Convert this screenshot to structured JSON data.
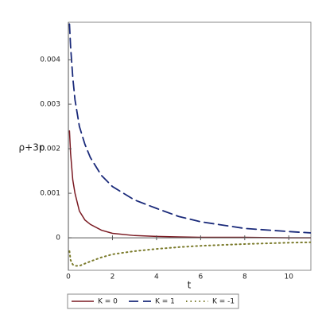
{
  "chart_data": {
    "type": "line",
    "x_label": "t",
    "y_label": "ρ+3p",
    "x": [
      0.05,
      0.1,
      0.2,
      0.3,
      0.5,
      0.75,
      1,
      1.5,
      2,
      3,
      4,
      5,
      6,
      8,
      10,
      11
    ],
    "series": [
      {
        "name": "K = 0",
        "color": "#7a1a22",
        "style": "solid",
        "values": [
          0.0024,
          0.0019,
          0.0013,
          0.001,
          0.0006,
          0.0004,
          0.0003,
          0.00017,
          0.0001,
          5e-05,
          3e-05,
          2e-05,
          1e-05,
          1e-05,
          0,
          0
        ]
      },
      {
        "name": "K = 1",
        "color": "#1a2a7a",
        "style": "dash",
        "values": [
          0.0048,
          0.0043,
          0.0036,
          0.0031,
          0.0025,
          0.0021,
          0.0018,
          0.0014,
          0.00115,
          0.00085,
          0.00066,
          0.00048,
          0.00036,
          0.00021,
          0.00014,
          0.00011
        ]
      },
      {
        "name": "K = -1",
        "color": "#7a7a2a",
        "style": "dot",
        "values": [
          -0.0003,
          -0.0005,
          -0.0006,
          -0.00063,
          -0.00063,
          -0.00058,
          -0.00053,
          -0.00044,
          -0.00037,
          -0.0003,
          -0.00025,
          -0.00021,
          -0.00018,
          -0.00014,
          -0.00011,
          -0.0001
        ]
      }
    ],
    "xlim": [
      0,
      11
    ],
    "xticks": [
      0,
      2,
      4,
      6,
      8,
      10
    ],
    "ylim": [
      -0.00073,
      0.00484
    ],
    "yticks": [
      0,
      0.001,
      0.002,
      0.003,
      0.004
    ],
    "legend": "bottom"
  }
}
